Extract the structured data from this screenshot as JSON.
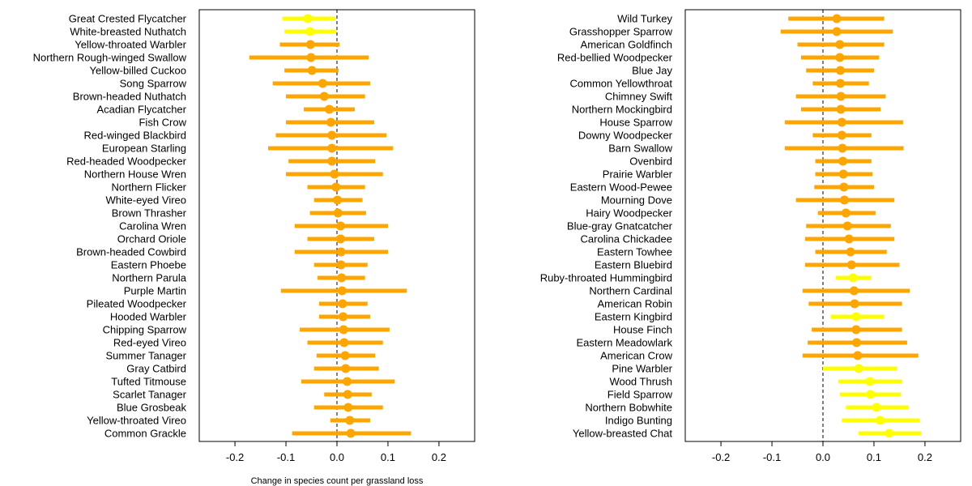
{
  "colors": {
    "significant": "#ffff00",
    "not_significant": "#ffa500",
    "zero_line": "#000000",
    "frame": "#000000"
  },
  "chart_data": [
    {
      "type": "forest",
      "xlabel": "Change in species count per grassland loss",
      "xlim": [
        -0.27,
        0.27
      ],
      "xticks": [
        "-0.2",
        "-0.1",
        "0.0",
        "0.1",
        "0.2"
      ],
      "reference_line": 0,
      "species": [
        {
          "name": "Great Crested Flycatcher",
          "estimate": -0.057,
          "lower": -0.107,
          "upper": -0.003,
          "significant": true
        },
        {
          "name": "White-breasted Nuthatch",
          "estimate": -0.053,
          "lower": -0.103,
          "upper": -0.002,
          "significant": true
        },
        {
          "name": "Yellow-throated Warbler",
          "estimate": -0.052,
          "lower": -0.112,
          "upper": 0.005,
          "significant": false
        },
        {
          "name": "Northern Rough-winged Swallow",
          "estimate": -0.051,
          "lower": -0.172,
          "upper": 0.062,
          "significant": false
        },
        {
          "name": "Yellow-billed Cuckoo",
          "estimate": -0.049,
          "lower": -0.103,
          "upper": 0.003,
          "significant": false
        },
        {
          "name": "Song Sparrow",
          "estimate": -0.028,
          "lower": -0.126,
          "upper": 0.065,
          "significant": false
        },
        {
          "name": "Brown-headed Nuthatch",
          "estimate": -0.025,
          "lower": -0.1,
          "upper": 0.055,
          "significant": false
        },
        {
          "name": "Acadian Flycatcher",
          "estimate": -0.015,
          "lower": -0.065,
          "upper": 0.035,
          "significant": false
        },
        {
          "name": "Fish Crow",
          "estimate": -0.012,
          "lower": -0.1,
          "upper": 0.073,
          "significant": false
        },
        {
          "name": "Red-winged Blackbird",
          "estimate": -0.01,
          "lower": -0.12,
          "upper": 0.097,
          "significant": false
        },
        {
          "name": "European Starling",
          "estimate": -0.01,
          "lower": -0.135,
          "upper": 0.11,
          "significant": false
        },
        {
          "name": "Red-headed Woodpecker",
          "estimate": -0.01,
          "lower": -0.095,
          "upper": 0.075,
          "significant": false
        },
        {
          "name": "Northern House Wren",
          "estimate": -0.005,
          "lower": -0.1,
          "upper": 0.09,
          "significant": false
        },
        {
          "name": "Northern Flicker",
          "estimate": -0.002,
          "lower": -0.058,
          "upper": 0.055,
          "significant": false
        },
        {
          "name": "White-eyed Vireo",
          "estimate": 0.001,
          "lower": -0.045,
          "upper": 0.05,
          "significant": false
        },
        {
          "name": "Brown Thrasher",
          "estimate": 0.002,
          "lower": -0.053,
          "upper": 0.057,
          "significant": false
        },
        {
          "name": "Carolina Wren",
          "estimate": 0.007,
          "lower": -0.083,
          "upper": 0.1,
          "significant": false
        },
        {
          "name": "Orchard Oriole",
          "estimate": 0.007,
          "lower": -0.058,
          "upper": 0.073,
          "significant": false
        },
        {
          "name": "Brown-headed Cowbird",
          "estimate": 0.008,
          "lower": -0.083,
          "upper": 0.1,
          "significant": false
        },
        {
          "name": "Eastern Phoebe",
          "estimate": 0.008,
          "lower": -0.045,
          "upper": 0.06,
          "significant": false
        },
        {
          "name": "Northern Parula",
          "estimate": 0.009,
          "lower": -0.038,
          "upper": 0.055,
          "significant": false
        },
        {
          "name": "Purple Martin",
          "estimate": 0.01,
          "lower": -0.11,
          "upper": 0.137,
          "significant": false
        },
        {
          "name": "Pileated Woodpecker",
          "estimate": 0.011,
          "lower": -0.035,
          "upper": 0.06,
          "significant": false
        },
        {
          "name": "Hooded Warbler",
          "estimate": 0.012,
          "lower": -0.035,
          "upper": 0.065,
          "significant": false
        },
        {
          "name": "Chipping Sparrow",
          "estimate": 0.013,
          "lower": -0.073,
          "upper": 0.103,
          "significant": false
        },
        {
          "name": "Red-eyed Vireo",
          "estimate": 0.014,
          "lower": -0.058,
          "upper": 0.09,
          "significant": false
        },
        {
          "name": "Summer Tanager",
          "estimate": 0.016,
          "lower": -0.04,
          "upper": 0.075,
          "significant": false
        },
        {
          "name": "Gray Catbird",
          "estimate": 0.017,
          "lower": -0.045,
          "upper": 0.082,
          "significant": false
        },
        {
          "name": "Tufted Titmouse",
          "estimate": 0.02,
          "lower": -0.07,
          "upper": 0.113,
          "significant": false
        },
        {
          "name": "Scarlet Tanager",
          "estimate": 0.021,
          "lower": -0.025,
          "upper": 0.068,
          "significant": false
        },
        {
          "name": "Blue Grosbeak",
          "estimate": 0.022,
          "lower": -0.045,
          "upper": 0.09,
          "significant": false
        },
        {
          "name": "Yellow-throated Vireo",
          "estimate": 0.025,
          "lower": -0.013,
          "upper": 0.065,
          "significant": false
        },
        {
          "name": "Common Grackle",
          "estimate": 0.027,
          "lower": -0.088,
          "upper": 0.145,
          "significant": false
        }
      ]
    },
    {
      "type": "forest",
      "xlabel": "",
      "xlim": [
        -0.27,
        0.27
      ],
      "xticks": [
        "-0.2",
        "-0.1",
        "0.0",
        "0.1",
        "0.2"
      ],
      "reference_line": 0,
      "species": [
        {
          "name": "Wild Turkey",
          "estimate": 0.027,
          "lower": -0.068,
          "upper": 0.12,
          "significant": false
        },
        {
          "name": "Grasshopper Sparrow",
          "estimate": 0.027,
          "lower": -0.083,
          "upper": 0.137,
          "significant": false
        },
        {
          "name": "American Goldfinch",
          "estimate": 0.033,
          "lower": -0.05,
          "upper": 0.12,
          "significant": false
        },
        {
          "name": "Red-bellied Woodpecker",
          "estimate": 0.033,
          "lower": -0.043,
          "upper": 0.11,
          "significant": false
        },
        {
          "name": "Blue Jay",
          "estimate": 0.034,
          "lower": -0.033,
          "upper": 0.1,
          "significant": false
        },
        {
          "name": "Common Yellowthroat",
          "estimate": 0.034,
          "lower": -0.02,
          "upper": 0.09,
          "significant": false
        },
        {
          "name": "Chimney Swift",
          "estimate": 0.035,
          "lower": -0.053,
          "upper": 0.123,
          "significant": false
        },
        {
          "name": "Northern Mockingbird",
          "estimate": 0.035,
          "lower": -0.043,
          "upper": 0.113,
          "significant": false
        },
        {
          "name": "House Sparrow",
          "estimate": 0.037,
          "lower": -0.075,
          "upper": 0.157,
          "significant": false
        },
        {
          "name": "Downy Woodpecker",
          "estimate": 0.037,
          "lower": -0.02,
          "upper": 0.095,
          "significant": false
        },
        {
          "name": "Barn Swallow",
          "estimate": 0.038,
          "lower": -0.075,
          "upper": 0.158,
          "significant": false
        },
        {
          "name": "Ovenbird",
          "estimate": 0.039,
          "lower": -0.015,
          "upper": 0.095,
          "significant": false
        },
        {
          "name": "Prairie Warbler",
          "estimate": 0.04,
          "lower": -0.015,
          "upper": 0.097,
          "significant": false
        },
        {
          "name": "Eastern Wood-Pewee",
          "estimate": 0.041,
          "lower": -0.017,
          "upper": 0.1,
          "significant": false
        },
        {
          "name": "Mourning Dove",
          "estimate": 0.042,
          "lower": -0.053,
          "upper": 0.14,
          "significant": false
        },
        {
          "name": "Hairy Woodpecker",
          "estimate": 0.045,
          "lower": -0.01,
          "upper": 0.103,
          "significant": false
        },
        {
          "name": "Blue-gray Gnatcatcher",
          "estimate": 0.048,
          "lower": -0.033,
          "upper": 0.133,
          "significant": false
        },
        {
          "name": "Carolina Chickadee",
          "estimate": 0.051,
          "lower": -0.035,
          "upper": 0.14,
          "significant": false
        },
        {
          "name": "Eastern Towhee",
          "estimate": 0.054,
          "lower": -0.015,
          "upper": 0.125,
          "significant": false
        },
        {
          "name": "Eastern Bluebird",
          "estimate": 0.056,
          "lower": -0.035,
          "upper": 0.15,
          "significant": false
        },
        {
          "name": "Ruby-throated Hummingbird",
          "estimate": 0.059,
          "lower": 0.025,
          "upper": 0.095,
          "significant": true
        },
        {
          "name": "Northern Cardinal",
          "estimate": 0.061,
          "lower": -0.04,
          "upper": 0.17,
          "significant": false
        },
        {
          "name": "American Robin",
          "estimate": 0.062,
          "lower": -0.028,
          "upper": 0.155,
          "significant": false
        },
        {
          "name": "Eastern Kingbird",
          "estimate": 0.065,
          "lower": 0.015,
          "upper": 0.12,
          "significant": true
        },
        {
          "name": "House Finch",
          "estimate": 0.065,
          "lower": -0.022,
          "upper": 0.155,
          "significant": false
        },
        {
          "name": "Eastern Meadowlark",
          "estimate": 0.066,
          "lower": -0.03,
          "upper": 0.165,
          "significant": false
        },
        {
          "name": "American Crow",
          "estimate": 0.068,
          "lower": -0.04,
          "upper": 0.187,
          "significant": false
        },
        {
          "name": "Pine Warbler",
          "estimate": 0.07,
          "lower": 0.0,
          "upper": 0.145,
          "significant": true
        },
        {
          "name": "Wood Thrush",
          "estimate": 0.092,
          "lower": 0.03,
          "upper": 0.155,
          "significant": true
        },
        {
          "name": "Field Sparrow",
          "estimate": 0.093,
          "lower": 0.033,
          "upper": 0.153,
          "significant": true
        },
        {
          "name": "Northern Bobwhite",
          "estimate": 0.105,
          "lower": 0.045,
          "upper": 0.168,
          "significant": true
        },
        {
          "name": "Indigo Bunting",
          "estimate": 0.112,
          "lower": 0.037,
          "upper": 0.19,
          "significant": true
        },
        {
          "name": "Yellow-breasted Chat",
          "estimate": 0.13,
          "lower": 0.07,
          "upper": 0.192,
          "significant": true
        }
      ]
    }
  ]
}
